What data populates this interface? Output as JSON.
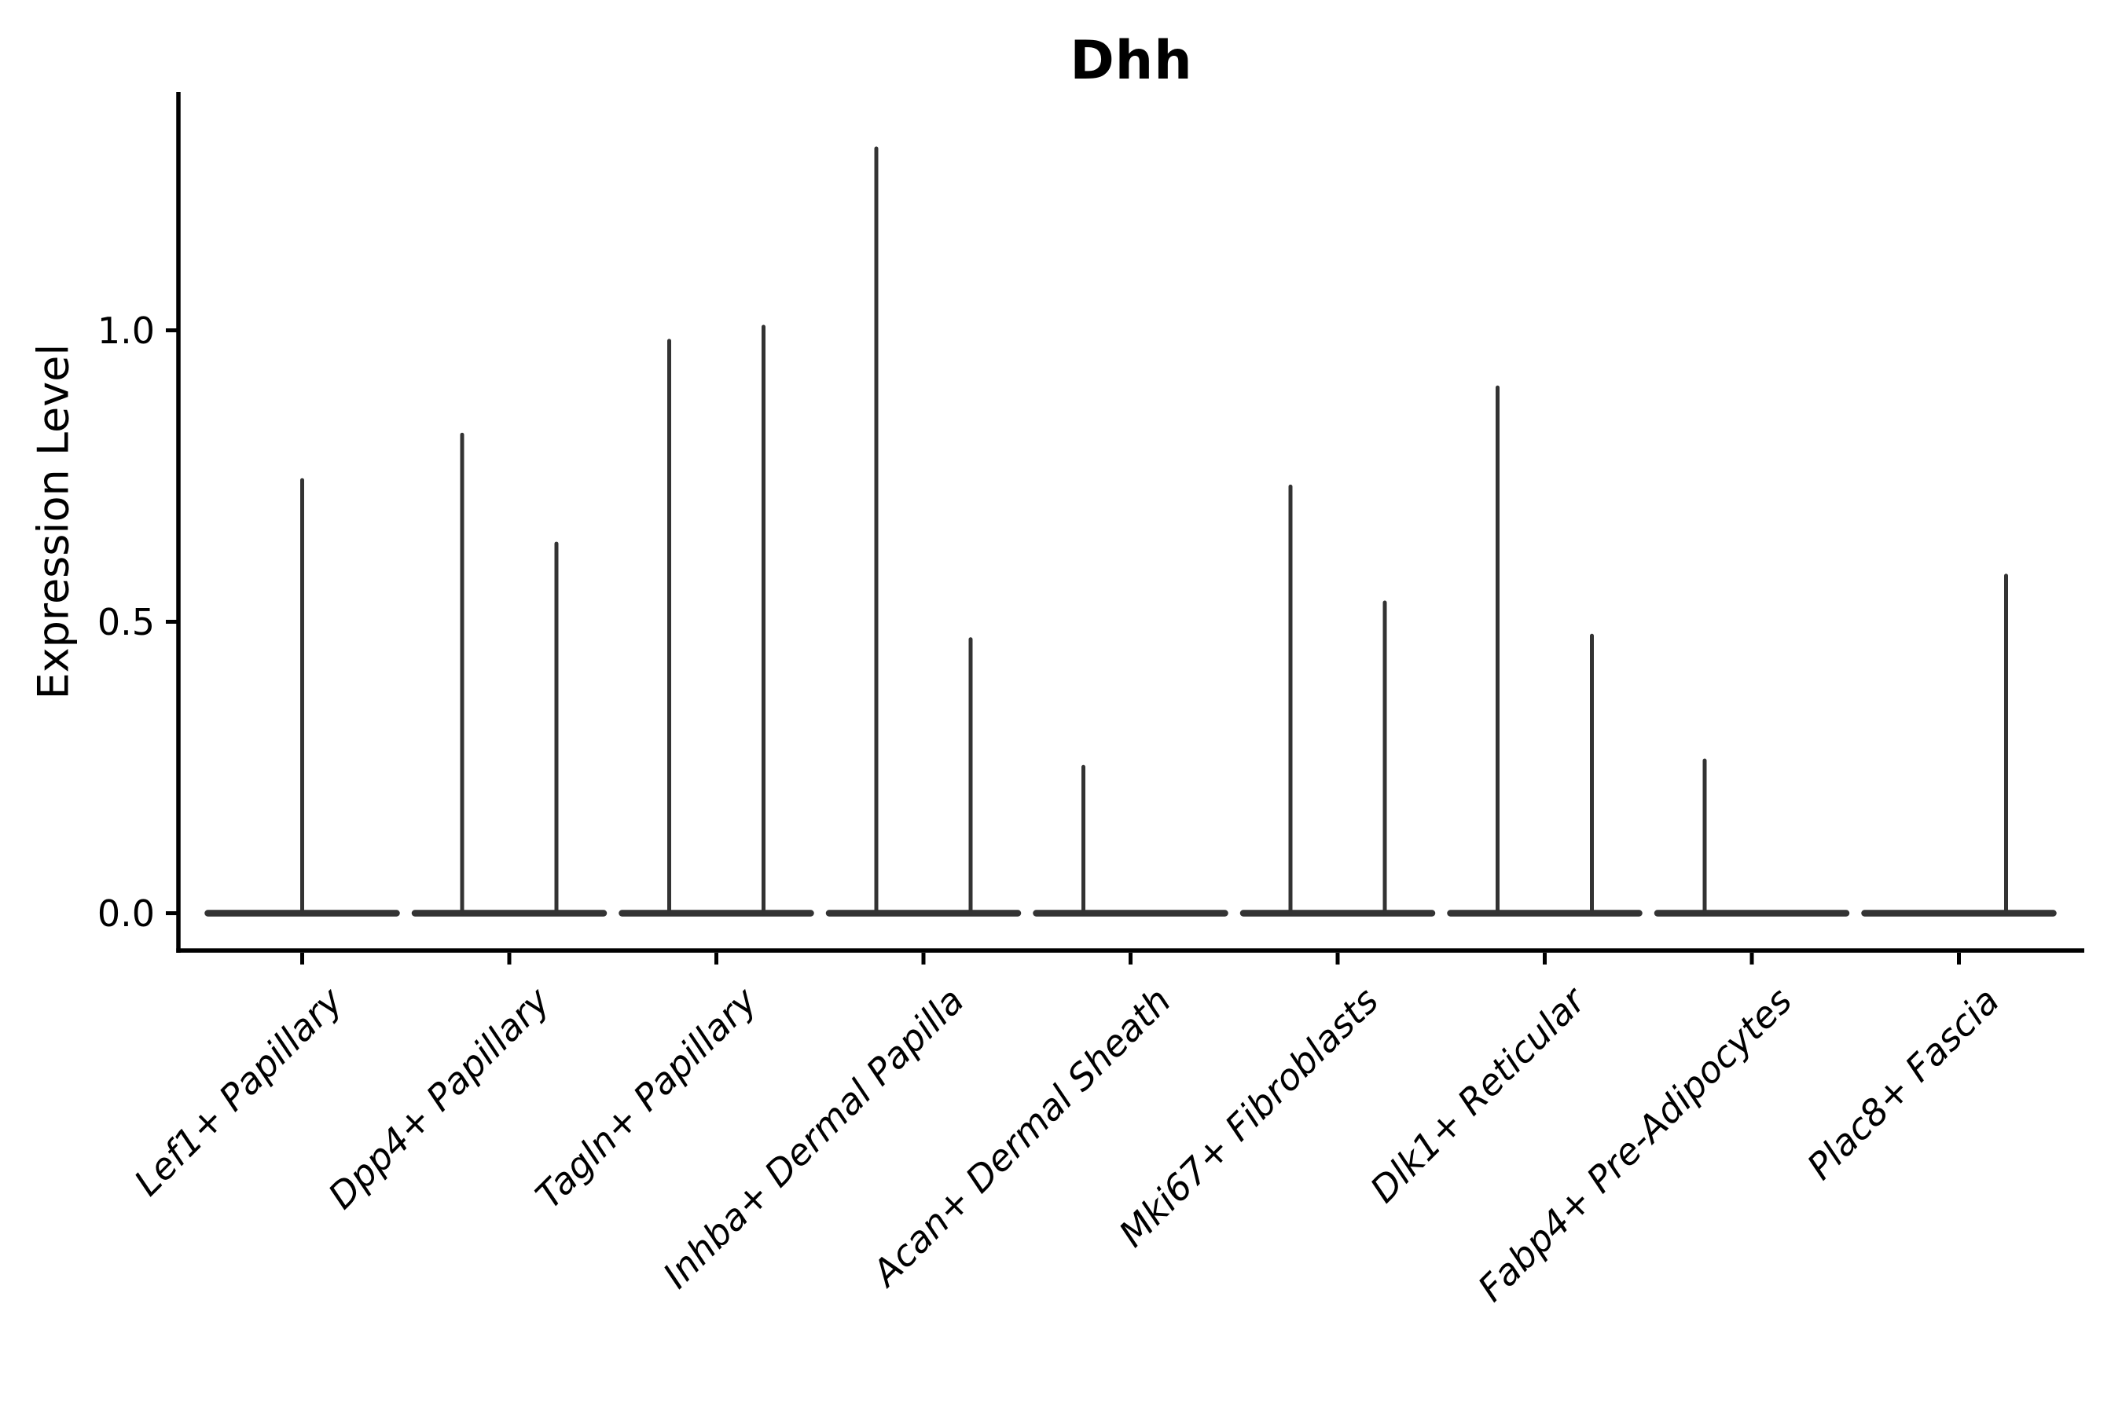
{
  "chart_data": {
    "type": "violin",
    "title": "Dhh",
    "xlabel": "",
    "ylabel": "Expression Level",
    "ylim": [
      -0.065,
      1.41
    ],
    "grid": false,
    "legend": "none",
    "yticks": [
      {
        "label": "1.0",
        "value": 1.0
      },
      {
        "label": "0.5",
        "value": 0.5
      },
      {
        "label": "0.0",
        "value": 0.0
      }
    ],
    "categories": [
      {
        "label": "Lef1+ Papillary",
        "violins": [
          {
            "position": "center",
            "max": 0.743
          }
        ]
      },
      {
        "label": "Dpp4+ Papillary",
        "violins": [
          {
            "position": "left",
            "max": 0.821
          },
          {
            "position": "right",
            "max": 0.634
          }
        ]
      },
      {
        "label": "Tagln+ Papillary",
        "violins": [
          {
            "position": "left",
            "max": 0.982
          },
          {
            "position": "right",
            "max": 1.006
          }
        ]
      },
      {
        "label": "Inhba+ Dermal Papilla",
        "violins": [
          {
            "position": "left",
            "max": 1.312
          },
          {
            "position": "right",
            "max": 0.47
          }
        ]
      },
      {
        "label": "Acan+ Dermal Sheath",
        "violins": [
          {
            "position": "left",
            "max": 0.251
          }
        ]
      },
      {
        "label": "Mki67+ Fibroblasts",
        "violins": [
          {
            "position": "left",
            "max": 0.732
          },
          {
            "position": "right",
            "max": 0.533
          }
        ]
      },
      {
        "label": "Dlk1+ Reticular",
        "violins": [
          {
            "position": "left",
            "max": 0.902
          },
          {
            "position": "right",
            "max": 0.476
          }
        ]
      },
      {
        "label": "Fabp4+ Pre-Adipocytes",
        "violins": [
          {
            "position": "left",
            "max": 0.262
          }
        ]
      },
      {
        "label": "Plac8+ Fascia",
        "violins": [
          {
            "position": "right",
            "max": 0.579
          }
        ]
      }
    ],
    "colors": {
      "violin_stroke": "#333333",
      "axis": "#000000",
      "text": "#000000",
      "background": "#ffffff"
    }
  }
}
